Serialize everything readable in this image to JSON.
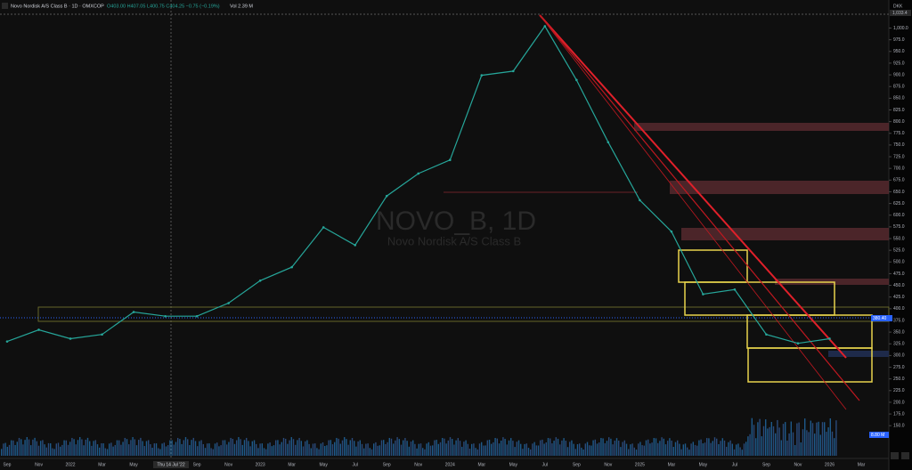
{
  "header": {
    "symbol": "Novo Nordisk A/S Class B · 1D · OMXCOP",
    "ohlc": "O403.00 H407.05 L400.75 C404.25 −0.75 (−0.19%)",
    "volume": "Vol 2.39 M"
  },
  "watermark": {
    "ticker": "NOVO_B, 1D",
    "name": "Novo Nordisk A/S Class B"
  },
  "price_axis": {
    "currency": "DKK",
    "high_label": "1,033.4",
    "last_label": "380.40",
    "volume_label": "8.80 M"
  },
  "crosshair_label": "Thu 14 Jul '22",
  "chart_data": {
    "type": "line",
    "color": "#26a69a",
    "categories": [
      "Sep",
      "Nov",
      "2022",
      "Mar",
      "May",
      null,
      "Sep",
      "Nov",
      "2023",
      "Mar",
      "May",
      "Jul",
      "Sep",
      "Nov",
      "2024",
      "Mar",
      "May",
      "Jul",
      "Sep",
      "Nov",
      "2025",
      "Mar",
      "May",
      "Jul",
      "Sep",
      "Nov",
      "2026",
      "Mar"
    ],
    "values": [
      330,
      355,
      336,
      345,
      393,
      384,
      384,
      412,
      460,
      489,
      574,
      536,
      641,
      689,
      718,
      899,
      908,
      1004,
      889,
      756,
      632,
      565,
      431,
      441,
      345,
      326,
      336,
      null
    ],
    "ylim": [
      80,
      1060
    ],
    "yticks": [
      {
        "value": 150,
        "label": "150.0"
      },
      {
        "value": 175,
        "label": "175.0"
      },
      {
        "value": 200,
        "label": "200.0"
      },
      {
        "value": 225,
        "label": "225.0"
      },
      {
        "value": 250,
        "label": "250.0"
      },
      {
        "value": 275,
        "label": "275.0"
      },
      {
        "value": 300,
        "label": "300.0"
      },
      {
        "value": 325,
        "label": "325.0"
      },
      {
        "value": 350,
        "label": "350.0"
      },
      {
        "value": 375,
        "label": "375.0"
      },
      {
        "value": 400,
        "label": "400.0"
      },
      {
        "value": 425,
        "label": "425.0"
      },
      {
        "value": 450,
        "label": "450.0"
      },
      {
        "value": 475,
        "label": "475.0"
      },
      {
        "value": 500,
        "label": "500.0"
      },
      {
        "value": 525,
        "label": "525.0"
      },
      {
        "value": 550,
        "label": "550.0"
      },
      {
        "value": 575,
        "label": "575.0"
      },
      {
        "value": 600,
        "label": "600.0"
      },
      {
        "value": 625,
        "label": "625.0"
      },
      {
        "value": 650,
        "label": "650.0"
      },
      {
        "value": 675,
        "label": "675.0"
      },
      {
        "value": 700,
        "label": "700.0"
      },
      {
        "value": 725,
        "label": "725.0"
      },
      {
        "value": 750,
        "label": "750.0"
      },
      {
        "value": 775,
        "label": "775.0"
      },
      {
        "value": 800,
        "label": "800.0"
      },
      {
        "value": 825,
        "label": "825.0"
      },
      {
        "value": 850,
        "label": "850.0"
      },
      {
        "value": 875,
        "label": "875.0"
      },
      {
        "value": 900,
        "label": "900.0"
      },
      {
        "value": 925,
        "label": "925.0"
      },
      {
        "value": 950,
        "label": "950.0"
      },
      {
        "value": 975,
        "label": "975.0"
      },
      {
        "value": 1000,
        "label": "1,000.0"
      }
    ]
  }
}
